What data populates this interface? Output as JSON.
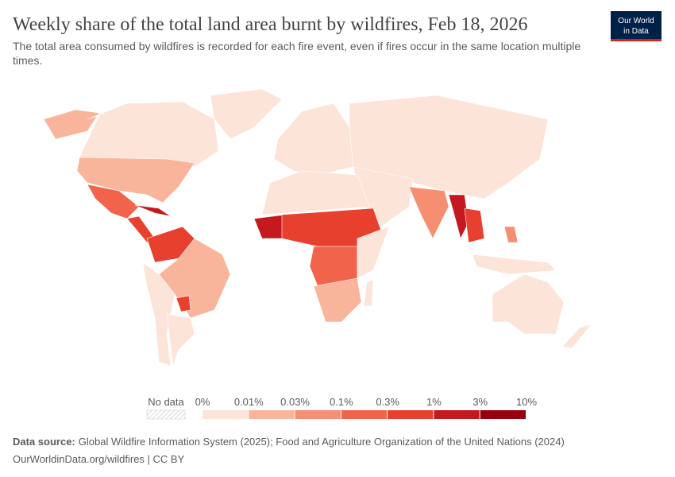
{
  "header": {
    "title": "Weekly share of the total land area burnt by wildfires, Feb 18, 2026",
    "subtitle": "The total area consumed by wildfires is recorded for each fire event, even if fires occur in the same location multiple times.",
    "logo": [
      "Our World",
      "in Data"
    ]
  },
  "legend": {
    "no_data": "No data",
    "labels": [
      "0%",
      "0.01%",
      "0.03%",
      "0.1%",
      "0.3%",
      "1%",
      "3%",
      "10%"
    ],
    "colors": [
      "#fde4d8",
      "#f9b59c",
      "#f68e71",
      "#f1634a",
      "#e8402f",
      "#c4191e",
      "#99000d"
    ]
  },
  "footer": {
    "source_label": "Data source:",
    "source": "Global Wildfire Information System (2025); Food and Agriculture Organization of the United Nations (2024)",
    "link": "OurWorldinData.org/wildfires | CC BY"
  }
}
